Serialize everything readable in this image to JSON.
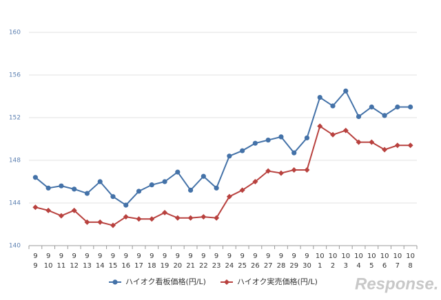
{
  "chart_data": {
    "type": "line",
    "categories": [
      {
        "month": "9",
        "day": "9"
      },
      {
        "month": "9",
        "day": "10"
      },
      {
        "month": "9",
        "day": "11"
      },
      {
        "month": "9",
        "day": "12"
      },
      {
        "month": "9",
        "day": "13"
      },
      {
        "month": "9",
        "day": "14"
      },
      {
        "month": "9",
        "day": "15"
      },
      {
        "month": "9",
        "day": "16"
      },
      {
        "month": "9",
        "day": "17"
      },
      {
        "month": "9",
        "day": "18"
      },
      {
        "month": "9",
        "day": "19"
      },
      {
        "month": "9",
        "day": "20"
      },
      {
        "month": "9",
        "day": "21"
      },
      {
        "month": "9",
        "day": "22"
      },
      {
        "month": "9",
        "day": "23"
      },
      {
        "month": "9",
        "day": "24"
      },
      {
        "month": "9",
        "day": "25"
      },
      {
        "month": "9",
        "day": "26"
      },
      {
        "month": "9",
        "day": "27"
      },
      {
        "month": "9",
        "day": "28"
      },
      {
        "month": "9",
        "day": "29"
      },
      {
        "month": "9",
        "day": "30"
      },
      {
        "month": "10",
        "day": "1"
      },
      {
        "month": "10",
        "day": "2"
      },
      {
        "month": "10",
        "day": "3"
      },
      {
        "month": "10",
        "day": "4"
      },
      {
        "month": "10",
        "day": "5"
      },
      {
        "month": "10",
        "day": "6"
      },
      {
        "month": "10",
        "day": "7"
      },
      {
        "month": "10",
        "day": "8"
      }
    ],
    "series": [
      {
        "name": "ハイオク看板価格(円/L)",
        "color": "#4472a8",
        "marker": "circle",
        "values": [
          146.4,
          145.4,
          145.6,
          145.3,
          144.9,
          146.0,
          144.6,
          143.8,
          145.1,
          145.7,
          146.0,
          146.9,
          145.2,
          146.5,
          145.4,
          148.4,
          148.9,
          149.6,
          149.9,
          150.2,
          148.7,
          150.1,
          153.9,
          153.1,
          154.5,
          152.1,
          153.0,
          152.2,
          153.0,
          153.0
        ]
      },
      {
        "name": "ハイオク実売価格(円/L)",
        "color": "#b8413e",
        "marker": "diamond",
        "values": [
          143.6,
          143.3,
          142.8,
          143.3,
          142.2,
          142.2,
          141.9,
          142.7,
          142.5,
          142.5,
          143.1,
          142.6,
          142.6,
          142.7,
          142.6,
          144.6,
          145.2,
          146.0,
          147.0,
          146.8,
          147.1,
          147.1,
          151.2,
          150.4,
          150.8,
          149.7,
          149.7,
          149.0,
          149.4,
          149.4
        ]
      }
    ],
    "ylim": [
      140,
      160
    ],
    "yticks": [
      140,
      144,
      148,
      152,
      156,
      160
    ],
    "grid": true,
    "legend": "bottom",
    "watermark": "Response."
  }
}
